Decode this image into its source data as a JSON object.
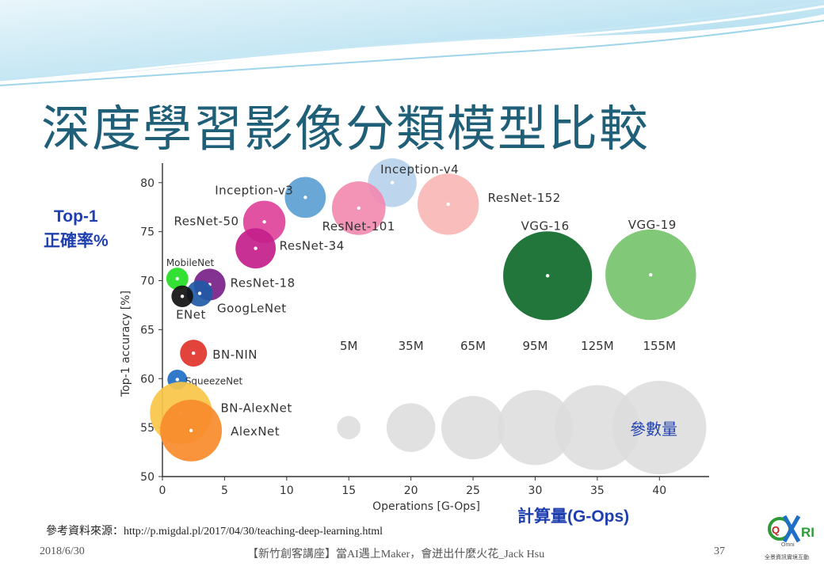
{
  "slide": {
    "title": "深度學習影像分類模型比較",
    "y_side_label_line1": "Top-1",
    "y_side_label_line2": "正確率%",
    "x_side_label": "計算量(G-Ops)",
    "param_label": "參數量",
    "reference": "參考資料來源：http://p.migdal.pl/2017/04/30/teaching-deep-learning.html",
    "date": "2018/6/30",
    "footer_center": "【新竹創客講座】當AI遇上Maker，會迸出什麼火花_Jack Hsu",
    "page_number": "37",
    "logo_text": "QXRI",
    "logo_sub": "Omni",
    "logo_caption": "全景資訊實境互動",
    "colors": {
      "title": "#1f5f78",
      "side_label": "#1f3fb0",
      "wave": "#8fd0ea"
    }
  },
  "chart_data": {
    "type": "scatter",
    "xlabel": "Operations [G-Ops]",
    "ylabel": "Top-1 accuracy [%]",
    "xlim": [
      0,
      44
    ],
    "ylim": [
      50,
      82
    ],
    "xticks": [
      0,
      5,
      10,
      15,
      20,
      25,
      30,
      35,
      40
    ],
    "yticks": [
      50,
      55,
      60,
      65,
      70,
      75,
      80
    ],
    "grid": false,
    "points": [
      {
        "name": "Inception-v4",
        "x": 18.5,
        "y": 80.0,
        "params_m": 35,
        "color": "#b9d3ec"
      },
      {
        "name": "Inception-v3",
        "x": 11.5,
        "y": 78.5,
        "params_m": 23,
        "color": "#5b9fd3"
      },
      {
        "name": "ResNet-152",
        "x": 23.0,
        "y": 77.8,
        "params_m": 60,
        "color": "#f9b8b5"
      },
      {
        "name": "ResNet-101",
        "x": 15.8,
        "y": 77.4,
        "params_m": 44,
        "color": "#f28ab0"
      },
      {
        "name": "ResNet-50",
        "x": 8.2,
        "y": 76.0,
        "params_m": 25,
        "color": "#e0439a"
      },
      {
        "name": "ResNet-34",
        "x": 7.5,
        "y": 73.3,
        "params_m": 22,
        "color": "#c3208a"
      },
      {
        "name": "MobileNet",
        "x": 1.2,
        "y": 70.2,
        "params_m": 4.2,
        "color": "#22dd22"
      },
      {
        "name": "ResNet-18",
        "x": 3.8,
        "y": 69.6,
        "params_m": 12,
        "color": "#7a2188"
      },
      {
        "name": "GoogLeNet",
        "x": 3.0,
        "y": 68.7,
        "params_m": 7,
        "color": "#1f5aa6"
      },
      {
        "name": "ENet",
        "x": 1.6,
        "y": 68.4,
        "params_m": 4,
        "color": "#111111"
      },
      {
        "name": "VGG-16",
        "x": 31.0,
        "y": 70.5,
        "params_m": 138,
        "color": "#0f6a2a"
      },
      {
        "name": "VGG-19",
        "x": 39.3,
        "y": 70.6,
        "params_m": 144,
        "color": "#77c36e"
      },
      {
        "name": "BN-NIN",
        "x": 2.5,
        "y": 62.6,
        "params_m": 7.6,
        "color": "#e0342a"
      },
      {
        "name": "SqueezeNet",
        "x": 1.2,
        "y": 59.9,
        "params_m": 3,
        "color": "#1f6fc4"
      },
      {
        "name": "BN-AlexNet",
        "x": 1.5,
        "y": 56.5,
        "params_m": 62,
        "color": "#f9c548"
      },
      {
        "name": "AlexNet",
        "x": 2.3,
        "y": 54.7,
        "params_m": 61,
        "color": "#f98b2b"
      }
    ],
    "size_legend": [
      {
        "label": "5M",
        "x": 15,
        "params_m": 5
      },
      {
        "label": "35M",
        "x": 20,
        "params_m": 35
      },
      {
        "label": "65M",
        "x": 25,
        "params_m": 65
      },
      {
        "label": "95M",
        "x": 30,
        "params_m": 95
      },
      {
        "label": "125M",
        "x": 35,
        "params_m": 125
      },
      {
        "label": "155M",
        "x": 40,
        "params_m": 155
      }
    ],
    "size_legend_y": 55,
    "size_legend_color": "#dcdcdc"
  }
}
